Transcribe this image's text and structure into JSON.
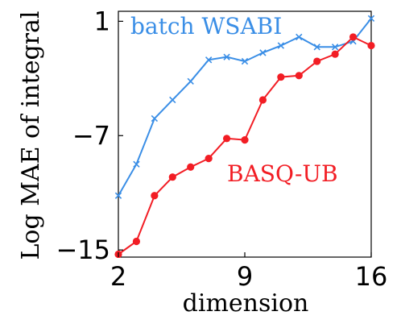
{
  "chart_data": {
    "type": "line",
    "title": "",
    "xlabel": "dimension",
    "ylabel": "Log MAE of integral",
    "xlim": [
      2,
      16
    ],
    "ylim": [
      -15.5,
      1.7
    ],
    "xticks": [
      2,
      9,
      16
    ],
    "yticks": [
      1,
      -7,
      -15
    ],
    "xtick_labels": [
      "2",
      "9",
      "16"
    ],
    "ytick_labels": [
      "1",
      "−7",
      "−15"
    ],
    "grid": false,
    "legend": "none",
    "series": [
      {
        "name": "batch WSABI",
        "color": "#3a8ee6",
        "marker": "x",
        "x": [
          2,
          3,
          4,
          5,
          6,
          7,
          8,
          9,
          10,
          11,
          12,
          13,
          14,
          15,
          16
        ],
        "values": [
          -11.2,
          -9.0,
          -5.8,
          -4.5,
          -3.2,
          -1.7,
          -1.5,
          -1.8,
          -1.2,
          -0.7,
          -0.1,
          -0.8,
          -0.8,
          -0.4,
          1.2
        ]
      },
      {
        "name": "BASQ-UB",
        "color": "#f21d24",
        "marker": "o",
        "x": [
          2,
          3,
          4,
          5,
          6,
          7,
          8,
          9,
          10,
          11,
          12,
          13,
          14,
          15,
          16
        ],
        "values": [
          -15.3,
          -14.4,
          -11.2,
          -9.9,
          -9.2,
          -8.6,
          -7.2,
          -7.3,
          -4.5,
          -2.9,
          -2.8,
          -1.8,
          -1.3,
          -0.1,
          -0.7
        ]
      }
    ]
  }
}
